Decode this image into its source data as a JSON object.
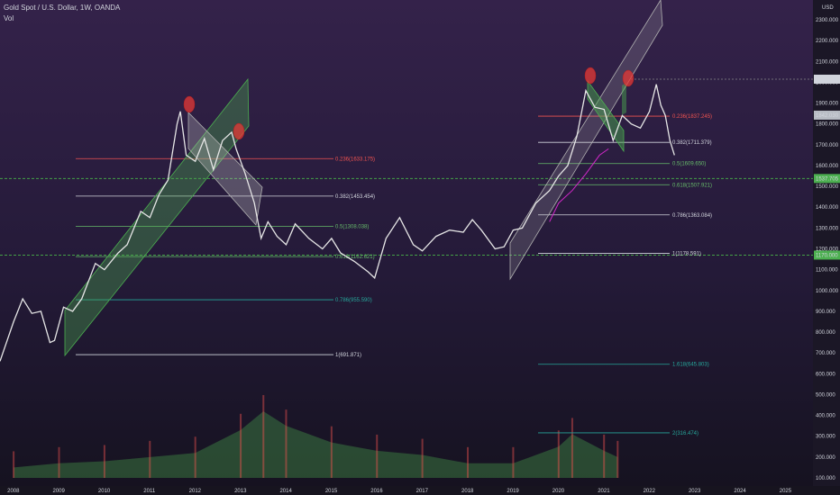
{
  "header": {
    "title": "Gold Spot / U.S. Dollar, 1W, OANDA",
    "indicator": "Vol"
  },
  "colors": {
    "candle": "#e6e6e6",
    "channel_green": "#4caf50",
    "channel_grey": "#b0b0b0",
    "fib_red": "#ef5350",
    "fib_green": "#66bb6a",
    "fib_teal": "#26a69a",
    "fib_white": "#d1d4dc",
    "ma_magenta": "#d028c8",
    "hline": "#43a047",
    "marker": "#e53935"
  },
  "price_axis": {
    "unit": "USD",
    "ticks": [
      "2300.000",
      "2200.000",
      "2100.000",
      "2000.000",
      "1900.000",
      "1800.000",
      "1700.000",
      "1600.000",
      "1500.000",
      "1400.000",
      "1300.000",
      "1200.000",
      "1100.000",
      "1000.000",
      "900.000",
      "800.000",
      "700.000",
      "600.000",
      "500.000",
      "400.000",
      "300.000",
      "200.000",
      "100.000"
    ],
    "labels": [
      {
        "text": "2014.819",
        "value": 2014.819,
        "bg": "#d1d4dc",
        "fg": "#131722"
      },
      {
        "text": "1842.030",
        "value": 1842.03,
        "bg": "#b8bcc4",
        "fg": "#131722"
      },
      {
        "text": "1537.705",
        "value": 1537.705,
        "bg": "#4caf50",
        "fg": "#ffffff"
      },
      {
        "text": "1170.000",
        "value": 1170.0,
        "bg": "#4caf50",
        "fg": "#ffffff"
      }
    ]
  },
  "time_axis": {
    "ticks": [
      "2008",
      "2009",
      "2010",
      "2011",
      "2012",
      "2013",
      "2014",
      "2015",
      "2016",
      "2017",
      "2018",
      "2019",
      "2020",
      "2021",
      "2022",
      "2023",
      "2024",
      "2025"
    ]
  },
  "fib_left": {
    "levels": [
      {
        "label": "0.236(1633.175)",
        "value": 1633.175,
        "color": "#ef5350"
      },
      {
        "label": "0.382(1453.454)",
        "value": 1453.454,
        "color": "#d1d4dc"
      },
      {
        "label": "0.5(1308.038)",
        "value": 1308.038,
        "color": "#66bb6a"
      },
      {
        "label": "0.618(1162.621)",
        "value": 1162.621,
        "color": "#66bb6a"
      },
      {
        "label": "0.786(955.590)",
        "value": 955.59,
        "color": "#26a69a"
      },
      {
        "label": "1(691.871)",
        "value": 691.871,
        "color": "#d1d4dc"
      }
    ]
  },
  "fib_right": {
    "levels": [
      {
        "label": "0.236(1837.245)",
        "value": 1837.245,
        "color": "#ef5350"
      },
      {
        "label": "0.382(1711.379)",
        "value": 1711.379,
        "color": "#d1d4dc"
      },
      {
        "label": "0.5(1609.650)",
        "value": 1609.65,
        "color": "#66bb6a"
      },
      {
        "label": "0.618(1507.921)",
        "value": 1507.921,
        "color": "#66bb6a"
      },
      {
        "label": "0.786(1363.084)",
        "value": 1363.084,
        "color": "#d1d4dc"
      },
      {
        "label": "1(1178.591)",
        "value": 1178.591,
        "color": "#d1d4dc"
      },
      {
        "label": "1.618(645.803)",
        "value": 645.803,
        "color": "#26a69a"
      },
      {
        "label": "2(316.474)",
        "value": 316.474,
        "color": "#26a69a"
      }
    ]
  },
  "chart_data": {
    "type": "line",
    "title": "Gold Spot / U.S. Dollar, 1W, OANDA",
    "xlabel": "",
    "ylabel": "USD",
    "ylim": [
      100,
      2350
    ],
    "xlim": [
      2007.7,
      2025.6
    ],
    "grid": false,
    "series": [
      {
        "name": "",
        "x": [
          2007.7,
          2008.0,
          2008.2,
          2008.4,
          2008.6,
          2008.8,
          2008.9,
          2009.1,
          2009.3,
          2009.5,
          2009.8,
          2010.0,
          2010.3,
          2010.5,
          2010.8,
          2011.0,
          2011.2,
          2011.4,
          2011.6,
          2011.67,
          2011.8,
          2012.0,
          2012.2,
          2012.4,
          2012.6,
          2012.8,
          2012.9,
          2013.1,
          2013.3,
          2013.45,
          2013.6,
          2013.8,
          2014.0,
          2014.2,
          2014.5,
          2014.8,
          2015.0,
          2015.2,
          2015.5,
          2015.8,
          2015.95,
          2016.2,
          2016.5,
          2016.8,
          2017.0,
          2017.3,
          2017.6,
          2017.9,
          2018.1,
          2018.3,
          2018.6,
          2018.8,
          2019.0,
          2019.2,
          2019.5,
          2019.8,
          2020.0,
          2020.2,
          2020.4,
          2020.6,
          2020.8,
          2021.0,
          2021.2,
          2021.4,
          2021.6,
          2021.8,
          2022.0,
          2022.15,
          2022.25,
          2022.35,
          2022.45,
          2022.55
        ],
        "values": [
          660,
          850,
          960,
          890,
          900,
          750,
          760,
          920,
          900,
          960,
          1130,
          1100,
          1180,
          1220,
          1380,
          1350,
          1460,
          1530,
          1800,
          1860,
          1650,
          1620,
          1730,
          1580,
          1720,
          1760,
          1680,
          1560,
          1420,
          1250,
          1330,
          1260,
          1220,
          1320,
          1250,
          1200,
          1250,
          1180,
          1140,
          1090,
          1060,
          1250,
          1350,
          1220,
          1190,
          1260,
          1290,
          1280,
          1340,
          1290,
          1200,
          1210,
          1290,
          1300,
          1420,
          1480,
          1550,
          1600,
          1740,
          1960,
          1880,
          1870,
          1720,
          1840,
          1800,
          1780,
          1860,
          1990,
          1890,
          1840,
          1720,
          1650
        ]
      }
    ],
    "moving_average": {
      "name": "",
      "x": [
        2019.8,
        2020.0,
        2020.3,
        2020.6,
        2020.9,
        2021.1
      ],
      "values": [
        1330,
        1420,
        1480,
        1560,
        1650,
        1680
      ]
    },
    "volume": {
      "x": [
        2008,
        2009,
        2010,
        2011,
        2012,
        2013,
        2013.5,
        2014,
        2015,
        2016,
        2017,
        2018,
        2019,
        2020,
        2020.3,
        2021,
        2021.3
      ],
      "values": [
        150,
        170,
        180,
        200,
        220,
        330,
        420,
        350,
        270,
        230,
        210,
        170,
        170,
        250,
        310,
        230,
        200
      ]
    }
  }
}
